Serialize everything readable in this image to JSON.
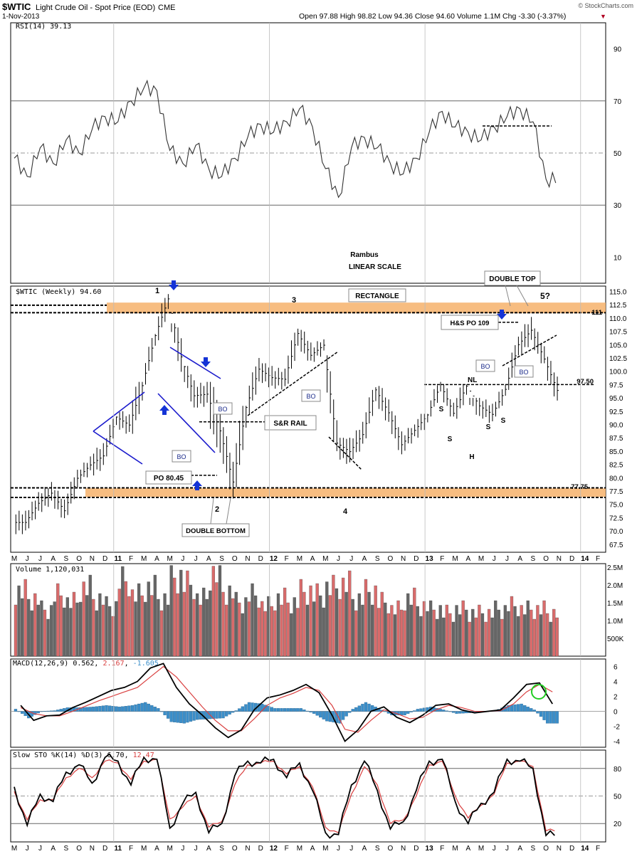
{
  "header": {
    "symbol": "$WTIC",
    "name": "Light Crude Oil - Spot Price (EOD)",
    "exchange": "CME",
    "date": "1-Nov-2013",
    "watermark": "© StockCharts.com",
    "quote": "Open 97.88  High 98.82  Low 94.36  Close 94.60  Volume 1.1M  Chg -3.30 (-3.37%)",
    "down_glyph": "▼"
  },
  "colors": {
    "price_bar": "#000000",
    "trendline": "#1a1acc",
    "arrow": "#1433d6",
    "band": "#f6b26b",
    "vol_up": "#666666",
    "vol_down": "#d96b6b",
    "macd_hist": "#3b8ec9",
    "signal": "#d94040"
  },
  "chart_data": [
    {
      "type": "line",
      "panel": "rsi",
      "legend": "RSI(14) 39.13",
      "ylim": [
        0,
        100
      ],
      "y_ticks": [
        10,
        30,
        50,
        70,
        90
      ],
      "reference_lines": [
        30,
        50,
        70
      ],
      "annotation": [
        "Rambus",
        "LINEAR SCALE"
      ],
      "x": [
        "2010-05",
        "2010-06",
        "2010-07",
        "2010-08",
        "2010-09",
        "2010-10",
        "2010-11",
        "2010-12",
        "2011-01",
        "2011-02",
        "2011-03",
        "2011-04",
        "2011-05",
        "2011-06",
        "2011-07",
        "2011-08",
        "2011-09",
        "2011-10",
        "2011-11",
        "2011-12",
        "2012-01",
        "2012-02",
        "2012-03",
        "2012-04",
        "2012-05",
        "2012-06",
        "2012-07",
        "2012-08",
        "2012-09",
        "2012-10",
        "2012-11",
        "2012-12",
        "2013-01",
        "2013-02",
        "2013-03",
        "2013-04",
        "2013-05",
        "2013-06",
        "2013-07",
        "2013-08",
        "2013-09",
        "2013-10"
      ],
      "values": [
        48,
        41,
        52,
        46,
        55,
        50,
        59,
        64,
        62,
        70,
        75,
        74,
        51,
        46,
        53,
        44,
        41,
        48,
        56,
        61,
        58,
        62,
        67,
        60,
        44,
        33,
        52,
        56,
        52,
        46,
        42,
        48,
        58,
        66,
        60,
        58,
        55,
        60,
        64,
        67,
        62,
        40
      ]
    },
    {
      "type": "bar",
      "panel": "price",
      "legend": "$WTIC (Weekly) 94.60",
      "ylim": [
        66,
        116
      ],
      "y_ticks": [
        67.5,
        70.0,
        72.5,
        75.0,
        77.5,
        80.0,
        82.5,
        85.0,
        87.5,
        90.0,
        92.5,
        95.0,
        97.5,
        100.0,
        102.5,
        105.0,
        107.5,
        110.0,
        112.5,
        115.0
      ],
      "x": [
        "2010-05",
        "2010-06",
        "2010-07",
        "2010-08",
        "2010-09",
        "2010-10",
        "2010-11",
        "2010-12",
        "2011-01",
        "2011-02",
        "2011-03",
        "2011-04",
        "2011-05",
        "2011-06",
        "2011-07",
        "2011-08",
        "2011-09",
        "2011-10",
        "2011-11",
        "2011-12",
        "2012-01",
        "2012-02",
        "2012-03",
        "2012-04",
        "2012-05",
        "2012-06",
        "2012-07",
        "2012-08",
        "2012-09",
        "2012-10",
        "2012-11",
        "2012-12",
        "2013-01",
        "2013-02",
        "2013-03",
        "2013-04",
        "2013-05",
        "2013-06",
        "2013-07",
        "2013-08",
        "2013-09",
        "2013-10"
      ],
      "close": [
        71.6,
        75.2,
        77.1,
        73.8,
        79.9,
        82.4,
        84.1,
        91.4,
        89.9,
        97.3,
        106.7,
        113.6,
        102.7,
        95.4,
        95.7,
        88.8,
        79.2,
        93.2,
        100.4,
        98.8,
        98.5,
        107.1,
        103.0,
        104.9,
        86.5,
        84.9,
        88.1,
        96.5,
        92.2,
        86.2,
        88.9,
        91.8,
        97.5,
        92.1,
        97.2,
        93.5,
        91.9,
        96.6,
        105.0,
        107.7,
        102.3,
        96.4
      ],
      "high": [
        75.0,
        77.5,
        79.5,
        78.0,
        81.5,
        84.0,
        88.0,
        91.5,
        92.5,
        98.0,
        107.0,
        114.5,
        109.0,
        101.0,
        99.5,
        98.0,
        91.5,
        93.5,
        102.5,
        101.5,
        103.0,
        108.0,
        110.5,
        106.0,
        103.0,
        87.5,
        92.0,
        97.0,
        99.5,
        93.0,
        90.0,
        92.0,
        98.0,
        98.0,
        97.5,
        95.0,
        96.5,
        97.5,
        106.5,
        112.0,
        110.0,
        104.0
      ],
      "low": [
        67.5,
        70.5,
        72.5,
        71.0,
        73.0,
        79.0,
        79.5,
        84.0,
        86.0,
        84.0,
        97.5,
        105.0,
        95.0,
        90.0,
        91.5,
        77.5,
        76.0,
        74.5,
        91.0,
        94.0,
        96.5,
        96.5,
        102.0,
        101.0,
        85.0,
        77.5,
        83.5,
        86.5,
        90.5,
        84.0,
        84.5,
        85.0,
        91.5,
        91.5,
        89.5,
        85.5,
        90.0,
        91.5,
        96.5,
        103.0,
        101.5,
        94.5
      ],
      "annotations": {
        "waves": [
          "1",
          "2",
          "3",
          "4",
          "5?"
        ],
        "rectangle": "RECTANGLE",
        "double_top": "DOUBLE TOP",
        "double_bottom": "DOUBLE BOTTOM",
        "hs_po": "H&S PO 109",
        "po": "PO 80.45",
        "sr_rail": "S&R RAIL",
        "bo": "BO",
        "nl": "NL",
        "s": "S",
        "h": "H",
        "level_111": "111",
        "level_97_50": "97.50",
        "level_77_75": "77.75"
      },
      "horizontal_levels": [
        112.4,
        111.0,
        77.75,
        76.3,
        97.5,
        90.5,
        80.45,
        109.0
      ]
    },
    {
      "type": "bar",
      "panel": "volume",
      "legend": "Volume 1,120,031",
      "y_ticks": [
        "2.5M",
        "2.0M",
        "1.5M",
        "1.0M",
        "500K"
      ],
      "y_tick_values": [
        2.5,
        2.0,
        1.5,
        1.0,
        0.5
      ],
      "ylim": [
        0,
        2.6
      ],
      "values_m": [
        1.8,
        1.6,
        1.3,
        1.7,
        1.5,
        1.9,
        1.6,
        1.4,
        2.1,
        1.7,
        1.9,
        1.6,
        2.2,
        2.0,
        1.6,
        2.3,
        1.8,
        1.5,
        1.7,
        1.4,
        1.6,
        1.5,
        1.8,
        1.7,
        1.9,
        2.0,
        1.6,
        1.8,
        1.5,
        1.3,
        1.6,
        1.4,
        1.3,
        1.2,
        1.3,
        1.2,
        1.2,
        1.3,
        1.4,
        1.3,
        1.3,
        1.2
      ]
    },
    {
      "type": "line",
      "panel": "macd",
      "legend_label": "MACD(12,26,9)",
      "legend_values": [
        "0.562",
        "2.167",
        "-1.605"
      ],
      "ylim": [
        -4.8,
        7
      ],
      "y_ticks": [
        6,
        4,
        2,
        0,
        -2,
        -4
      ],
      "x": [
        "2010-05",
        "2010-06",
        "2010-07",
        "2010-08",
        "2010-09",
        "2010-10",
        "2010-11",
        "2010-12",
        "2011-01",
        "2011-02",
        "2011-03",
        "2011-04",
        "2011-05",
        "2011-06",
        "2011-07",
        "2011-08",
        "2011-09",
        "2011-10",
        "2011-11",
        "2011-12",
        "2012-01",
        "2012-02",
        "2012-03",
        "2012-04",
        "2012-05",
        "2012-06",
        "2012-07",
        "2012-08",
        "2012-09",
        "2012-10",
        "2012-11",
        "2012-12",
        "2013-01",
        "2013-02",
        "2013-03",
        "2013-04",
        "2013-05",
        "2013-06",
        "2013-07",
        "2013-08",
        "2013-09",
        "2013-10"
      ],
      "macd": [
        0.8,
        -1.2,
        -0.6,
        -0.5,
        0.5,
        1.2,
        2.0,
        2.8,
        3.2,
        4.0,
        5.8,
        6.4,
        3.2,
        1.0,
        -0.5,
        -2.2,
        -3.5,
        -2.5,
        0.2,
        1.8,
        2.2,
        2.8,
        3.6,
        2.5,
        -0.5,
        -4.0,
        -2.5,
        0.0,
        0.6,
        -0.8,
        -1.5,
        -0.5,
        0.8,
        1.0,
        0.2,
        -0.2,
        0.0,
        0.2,
        1.8,
        3.6,
        3.8,
        1.0
      ],
      "signal": [
        0.5,
        -0.3,
        -0.6,
        -0.6,
        0.0,
        0.7,
        1.4,
        2.0,
        2.6,
        3.2,
        4.6,
        6.0,
        4.6,
        2.6,
        0.6,
        -1.2,
        -2.6,
        -2.6,
        -1.0,
        0.8,
        1.8,
        2.4,
        3.2,
        2.8,
        0.8,
        -2.4,
        -2.8,
        -1.2,
        0.2,
        -0.3,
        -1.0,
        -0.8,
        0.2,
        0.8,
        0.5,
        0.0,
        0.0,
        0.1,
        1.0,
        2.6,
        3.6,
        2.6
      ],
      "histogram": [
        0.3,
        -0.9,
        0.0,
        0.1,
        0.5,
        0.5,
        0.6,
        0.8,
        0.6,
        0.8,
        1.2,
        0.4,
        -1.4,
        -1.6,
        -1.1,
        -1.0,
        -0.9,
        0.1,
        1.2,
        1.0,
        0.4,
        0.4,
        0.4,
        -0.3,
        -1.3,
        -1.6,
        0.3,
        1.2,
        0.4,
        -0.5,
        -0.5,
        0.3,
        0.6,
        0.2,
        -0.3,
        -0.2,
        0.0,
        0.1,
        0.8,
        1.0,
        0.2,
        -1.6
      ]
    },
    {
      "type": "line",
      "panel": "stochastic",
      "legend_label": "Slow STO %K(14) %D(3)",
      "legend_values": [
        "6.70",
        "12.47"
      ],
      "ylim": [
        0,
        100
      ],
      "y_ticks": [
        20,
        50,
        80
      ],
      "reference_lines": [
        20,
        50,
        80
      ],
      "x": [
        "2010-05",
        "2010-06",
        "2010-07",
        "2010-08",
        "2010-09",
        "2010-10",
        "2010-11",
        "2010-12",
        "2011-01",
        "2011-02",
        "2011-03",
        "2011-04",
        "2011-05",
        "2011-06",
        "2011-07",
        "2011-08",
        "2011-09",
        "2011-10",
        "2011-11",
        "2011-12",
        "2012-01",
        "2012-02",
        "2012-03",
        "2012-04",
        "2012-05",
        "2012-06",
        "2012-07",
        "2012-08",
        "2012-09",
        "2012-10",
        "2012-11",
        "2012-12",
        "2013-01",
        "2013-02",
        "2013-03",
        "2013-04",
        "2013-05",
        "2013-06",
        "2013-07",
        "2013-08",
        "2013-09",
        "2013-10"
      ],
      "k": [
        60,
        18,
        52,
        44,
        76,
        84,
        64,
        92,
        88,
        62,
        92,
        90,
        15,
        42,
        54,
        10,
        20,
        72,
        88,
        86,
        90,
        70,
        86,
        56,
        10,
        8,
        62,
        88,
        56,
        14,
        22,
        56,
        88,
        90,
        44,
        20,
        42,
        54,
        90,
        88,
        80,
        7
      ],
      "d": [
        55,
        24,
        46,
        46,
        70,
        80,
        70,
        88,
        86,
        68,
        88,
        90,
        25,
        38,
        50,
        16,
        22,
        62,
        84,
        86,
        88,
        74,
        82,
        60,
        16,
        10,
        52,
        82,
        62,
        20,
        24,
        50,
        84,
        88,
        50,
        26,
        40,
        52,
        86,
        88,
        82,
        12
      ]
    }
  ],
  "x_axis": {
    "months": [
      "M",
      "J",
      "J",
      "A",
      "S",
      "O",
      "N",
      "D",
      "11",
      "F",
      "M",
      "A",
      "M",
      "J",
      "J",
      "A",
      "S",
      "O",
      "N",
      "D",
      "12",
      "F",
      "M",
      "A",
      "M",
      "J",
      "J",
      "A",
      "S",
      "O",
      "N",
      "D",
      "13",
      "F",
      "M",
      "A",
      "M",
      "J",
      "J",
      "A",
      "S",
      "O",
      "N",
      "D",
      "14",
      "F"
    ],
    "year_labels": [
      "11",
      "12",
      "13",
      "14"
    ]
  }
}
